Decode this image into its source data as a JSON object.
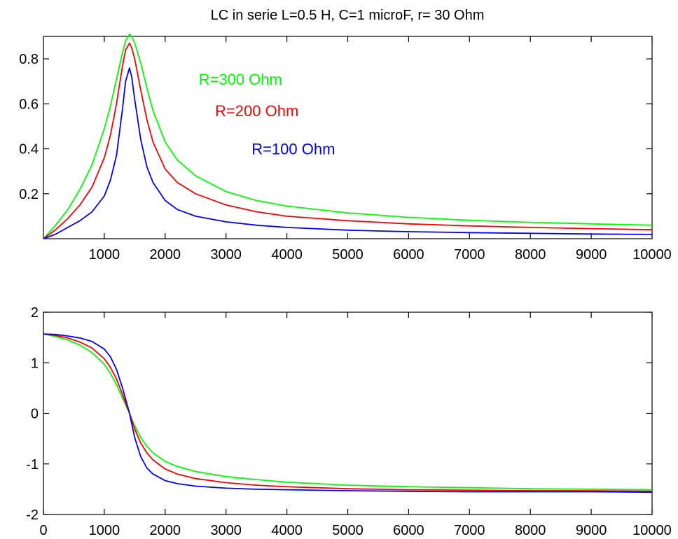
{
  "chart_data": [
    {
      "type": "line",
      "title": "LC in serie L=0.5 H, C=1 microF, r= 30 Ohm",
      "xlabel": "",
      "ylabel": "",
      "xlim": [
        0,
        10000
      ],
      "ylim": [
        0,
        0.9
      ],
      "grid": false,
      "xticks": [
        1000,
        2000,
        3000,
        4000,
        5000,
        6000,
        7000,
        8000,
        9000,
        10000
      ],
      "xtick_labels": [
        "1000",
        "2000",
        "3000",
        "4000",
        "5000",
        "6000",
        "7000",
        "8000",
        "9000",
        "10000"
      ],
      "yticks": [
        0.2,
        0.4,
        0.6,
        0.8
      ],
      "ytick_labels": [
        "0.2",
        "0.4",
        "0.6",
        "0.8"
      ],
      "series": [
        {
          "color": "#00ff00",
          "x": [
            0,
            200,
            400,
            600,
            800,
            1000,
            1100,
            1200,
            1300,
            1350,
            1414,
            1450,
            1500,
            1600,
            1700,
            1800,
            2000,
            2200,
            2500,
            3000,
            3500,
            4000,
            5000,
            6000,
            7000,
            8000,
            9000,
            10000
          ],
          "y": [
            0,
            0.06,
            0.13,
            0.22,
            0.33,
            0.49,
            0.59,
            0.71,
            0.83,
            0.88,
            0.91,
            0.9,
            0.87,
            0.78,
            0.67,
            0.57,
            0.43,
            0.35,
            0.28,
            0.21,
            0.17,
            0.145,
            0.115,
            0.095,
            0.082,
            0.073,
            0.066,
            0.06
          ]
        },
        {
          "color": "#ff0000",
          "x": [
            0,
            200,
            400,
            600,
            800,
            1000,
            1100,
            1200,
            1300,
            1350,
            1414,
            1450,
            1500,
            1600,
            1700,
            1800,
            2000,
            2200,
            2500,
            3000,
            3500,
            4000,
            5000,
            6000,
            7000,
            8000,
            9000,
            10000
          ],
          "y": [
            0,
            0.04,
            0.09,
            0.15,
            0.23,
            0.36,
            0.46,
            0.6,
            0.77,
            0.84,
            0.87,
            0.85,
            0.8,
            0.66,
            0.53,
            0.43,
            0.31,
            0.25,
            0.2,
            0.15,
            0.12,
            0.1,
            0.08,
            0.066,
            0.057,
            0.05,
            0.045,
            0.04
          ]
        },
        {
          "color": "#0000ff",
          "x": [
            0,
            200,
            400,
            600,
            800,
            1000,
            1100,
            1200,
            1300,
            1350,
            1414,
            1450,
            1500,
            1600,
            1700,
            1800,
            2000,
            2200,
            2500,
            3000,
            3500,
            4000,
            5000,
            6000,
            7000,
            8000,
            9000,
            10000
          ],
          "y": [
            0,
            0.02,
            0.05,
            0.08,
            0.12,
            0.19,
            0.26,
            0.37,
            0.58,
            0.7,
            0.76,
            0.72,
            0.62,
            0.44,
            0.32,
            0.25,
            0.17,
            0.13,
            0.1,
            0.075,
            0.06,
            0.05,
            0.038,
            0.031,
            0.027,
            0.024,
            0.021,
            0.019
          ]
        }
      ],
      "annotations": [
        {
          "text": "R=300 Ohm",
          "color": "#00ff00",
          "x": 2550,
          "y": 0.685
        },
        {
          "text": "R=200 Ohm",
          "color": "#ff0000",
          "x": 2820,
          "y": 0.545
        },
        {
          "text": "R=100 Ohm",
          "color": "#0000ff",
          "x": 3420,
          "y": 0.375
        }
      ]
    },
    {
      "type": "line",
      "title": "",
      "xlabel": "",
      "ylabel": "",
      "xlim": [
        0,
        10000
      ],
      "ylim": [
        -2,
        2
      ],
      "grid": false,
      "xticks": [
        0,
        1000,
        2000,
        3000,
        4000,
        5000,
        6000,
        7000,
        8000,
        9000,
        10000
      ],
      "xtick_labels": [
        "0",
        "1000",
        "2000",
        "3000",
        "4000",
        "5000",
        "6000",
        "7000",
        "8000",
        "9000",
        "10000"
      ],
      "yticks": [
        -2,
        -1,
        0,
        1,
        2
      ],
      "ytick_labels": [
        "-2",
        "-1",
        "0",
        "1",
        "2"
      ],
      "series": [
        {
          "color": "#00ff00",
          "x": [
            0,
            200,
            400,
            600,
            800,
            1000,
            1100,
            1200,
            1300,
            1414,
            1500,
            1600,
            1700,
            1800,
            2000,
            2200,
            2500,
            3000,
            3500,
            4000,
            5000,
            6000,
            7000,
            8000,
            9000,
            10000
          ],
          "y": [
            1.57,
            1.52,
            1.45,
            1.35,
            1.2,
            0.97,
            0.79,
            0.57,
            0.3,
            0,
            -0.25,
            -0.48,
            -0.65,
            -0.78,
            -0.95,
            -1.05,
            -1.15,
            -1.25,
            -1.31,
            -1.36,
            -1.42,
            -1.45,
            -1.47,
            -1.49,
            -1.5,
            -1.51
          ]
        },
        {
          "color": "#ff0000",
          "x": [
            0,
            200,
            400,
            600,
            800,
            1000,
            1100,
            1200,
            1300,
            1414,
            1500,
            1600,
            1700,
            1800,
            2000,
            2200,
            2500,
            3000,
            3500,
            4000,
            5000,
            6000,
            7000,
            8000,
            9000,
            10000
          ],
          "y": [
            1.57,
            1.54,
            1.49,
            1.41,
            1.29,
            1.08,
            0.91,
            0.68,
            0.37,
            0,
            -0.31,
            -0.59,
            -0.78,
            -0.92,
            -1.1,
            -1.2,
            -1.29,
            -1.37,
            -1.42,
            -1.45,
            -1.49,
            -1.51,
            -1.52,
            -1.53,
            -1.53,
            -1.54
          ]
        },
        {
          "color": "#0000ff",
          "x": [
            0,
            200,
            400,
            600,
            800,
            1000,
            1100,
            1200,
            1300,
            1414,
            1500,
            1600,
            1700,
            1800,
            2000,
            2200,
            2500,
            3000,
            3500,
            4000,
            5000,
            6000,
            7000,
            8000,
            9000,
            10000
          ],
          "y": [
            1.57,
            1.56,
            1.53,
            1.49,
            1.42,
            1.27,
            1.12,
            0.87,
            0.5,
            0,
            -0.48,
            -0.86,
            -1.08,
            -1.2,
            -1.33,
            -1.39,
            -1.44,
            -1.48,
            -1.5,
            -1.51,
            -1.53,
            -1.54,
            -1.55,
            -1.55,
            -1.55,
            -1.56
          ]
        }
      ],
      "annotations": []
    }
  ]
}
